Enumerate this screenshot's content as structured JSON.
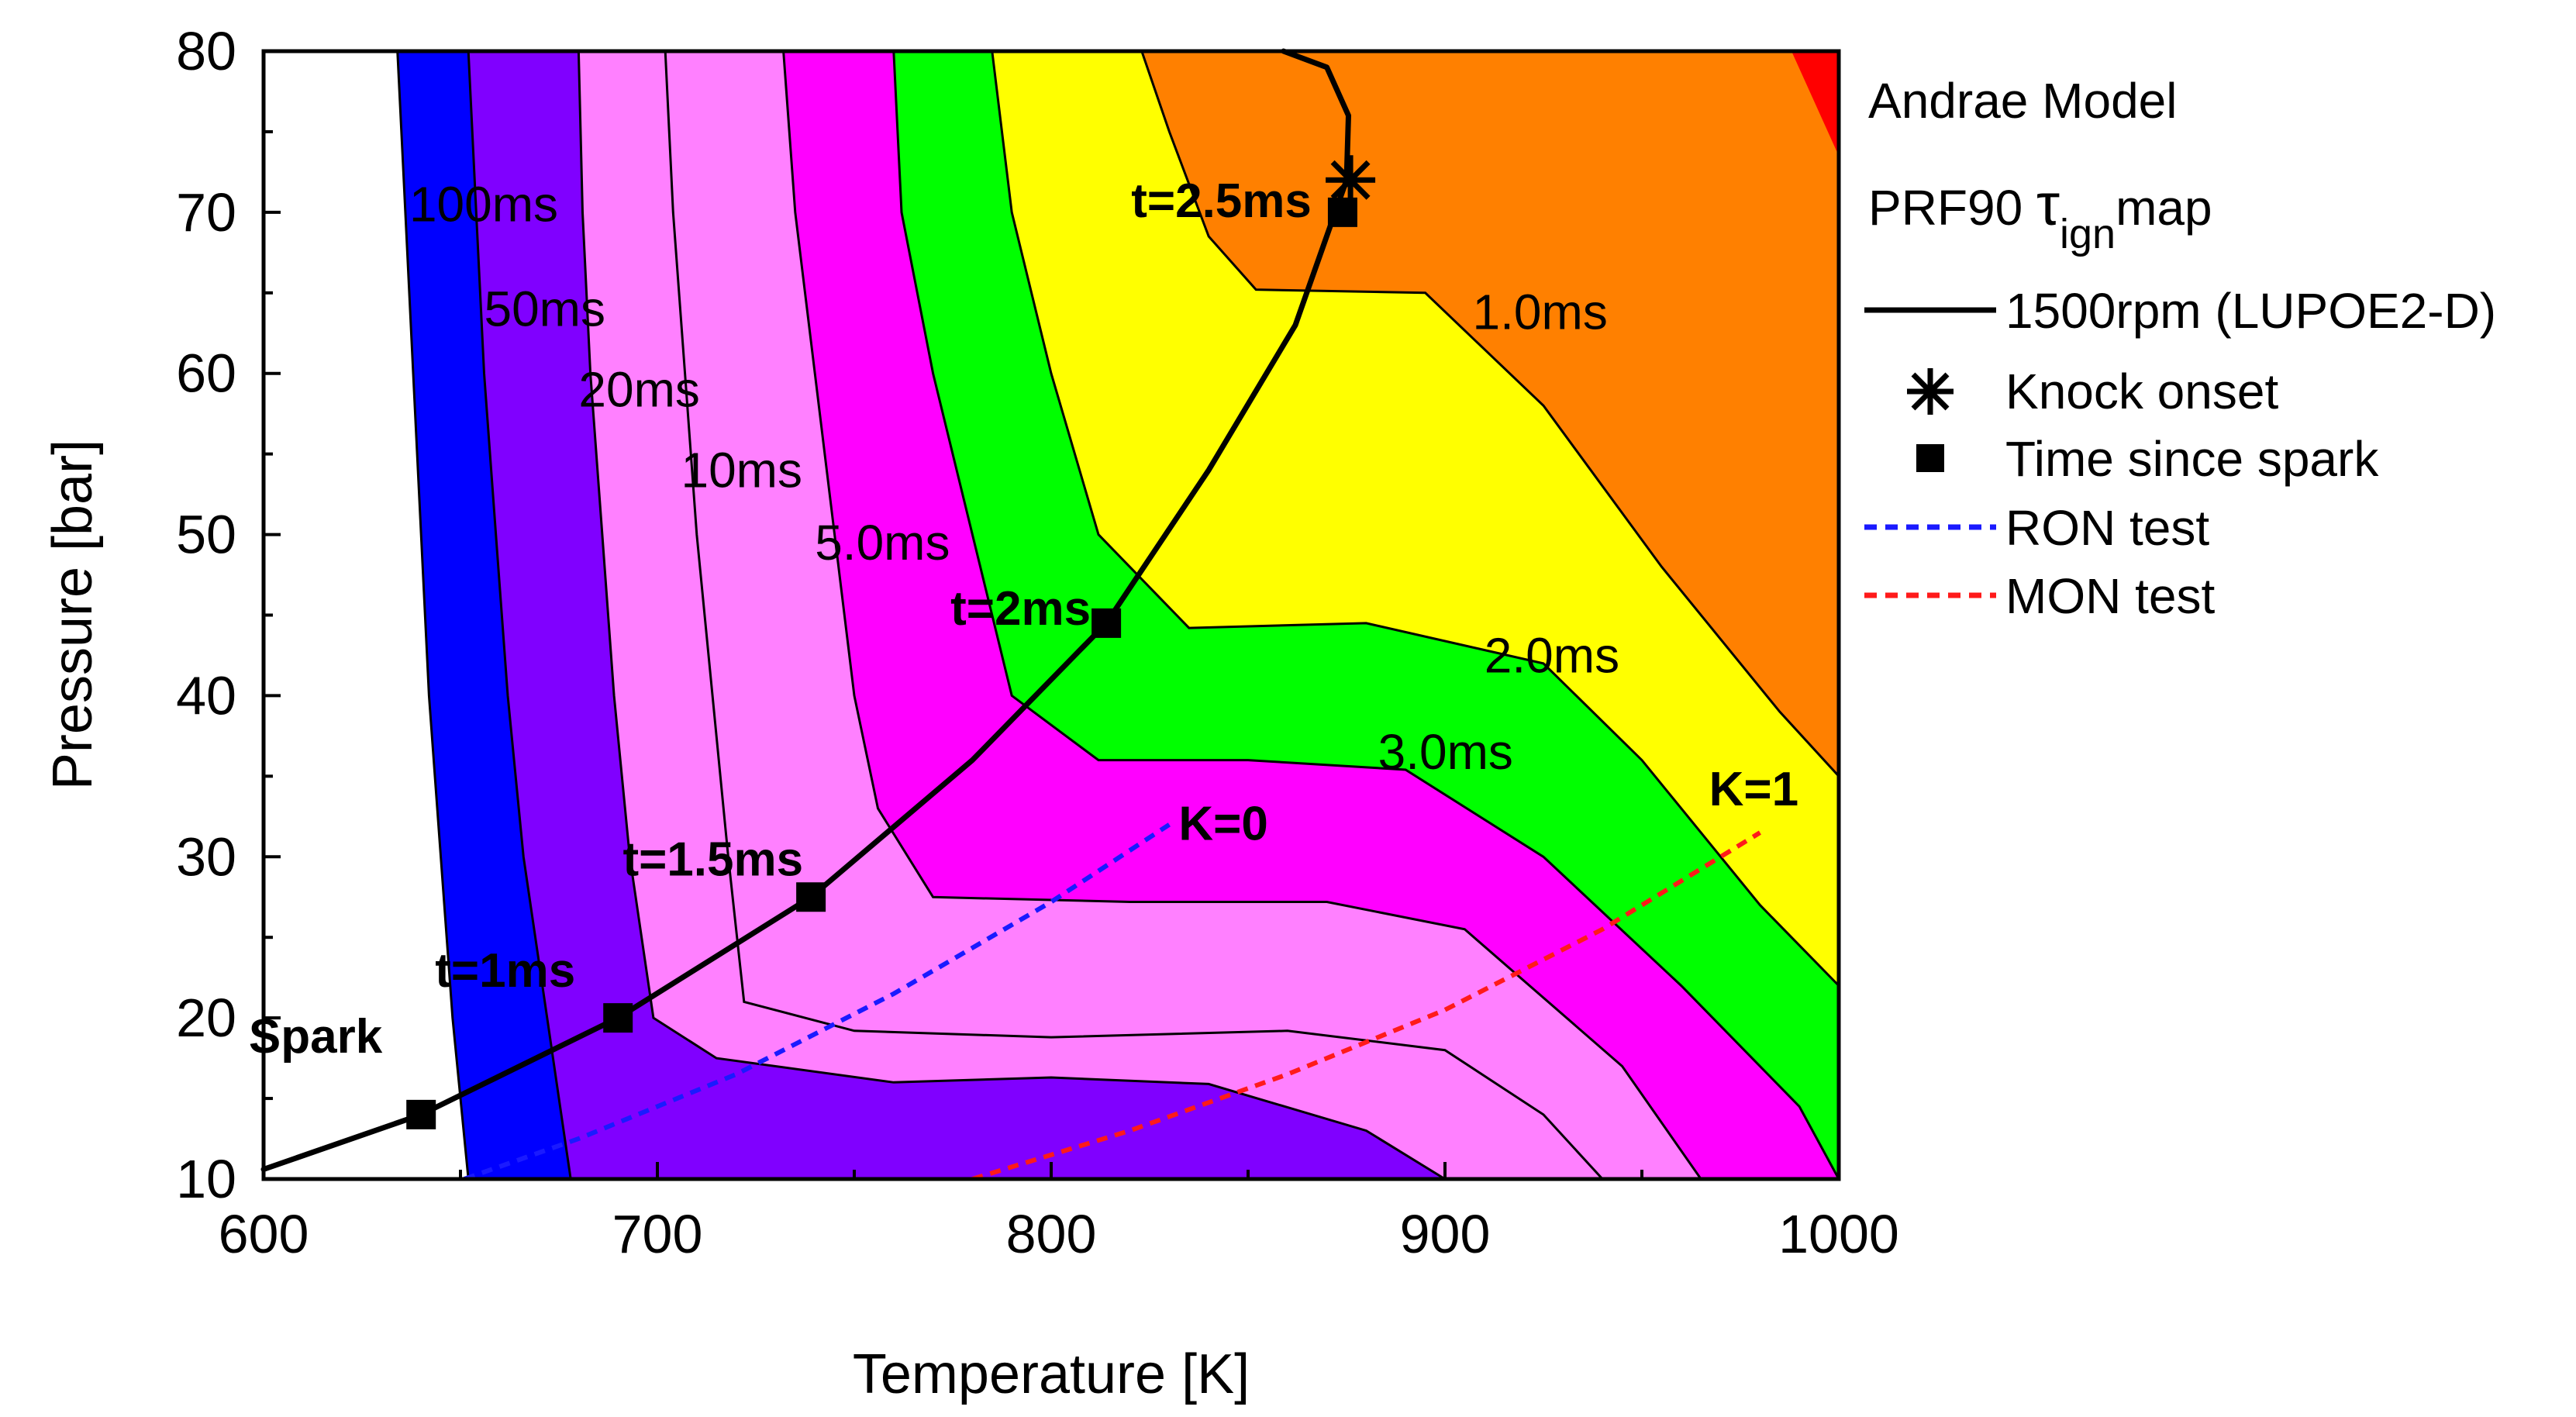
{
  "chart_data": {
    "type": "contour",
    "title": "",
    "xlabel": "Temperature [K]",
    "ylabel": "Pressure [bar]",
    "xlim": [
      600,
      1000
    ],
    "ylim": [
      10,
      80
    ],
    "xticks": [
      600,
      700,
      800,
      900,
      1000
    ],
    "yticks": [
      10,
      20,
      30,
      40,
      50,
      60,
      70,
      80
    ],
    "colors": {
      "over_100ms": "#ffffff",
      "50_100ms": "#0000ff",
      "20_50ms": "#8000ff",
      "5_20ms": "#ff80ff",
      "3_5ms": "#ff00ff",
      "2_3ms": "#00ff00",
      "1_2ms": "#ffff00",
      "under_1ms": "#ff8000",
      "corner": "#ff0000",
      "engine_curve": "#000000",
      "ron": "#1a1aff",
      "mon": "#ff1a1a"
    },
    "contours": [
      {
        "label": "100ms",
        "at": [
          637,
          70.5
        ],
        "points": [
          [
            634,
            80
          ],
          [
            636,
            70
          ],
          [
            638,
            60
          ],
          [
            640,
            50
          ],
          [
            642,
            40
          ],
          [
            645,
            30
          ],
          [
            648,
            20
          ],
          [
            652,
            10
          ]
        ]
      },
      {
        "label": "50ms",
        "at": [
          656,
          64
        ],
        "points": [
          [
            652,
            80
          ],
          [
            654,
            70
          ],
          [
            656,
            60
          ],
          [
            659,
            50
          ],
          [
            662,
            40
          ],
          [
            666,
            30
          ],
          [
            672,
            20
          ],
          [
            678,
            10
          ]
        ]
      },
      {
        "label": "20ms",
        "at": [
          680,
          59
        ],
        "points": [
          [
            680,
            80
          ],
          [
            681,
            70
          ],
          [
            683,
            60
          ],
          [
            686,
            50
          ],
          [
            689,
            40
          ],
          [
            693,
            30
          ],
          [
            699,
            20
          ],
          [
            715,
            17.5
          ],
          [
            760,
            16
          ],
          [
            800,
            16.3
          ],
          [
            840,
            15.9
          ],
          [
            880,
            13
          ],
          [
            900,
            10
          ]
        ]
      },
      {
        "label": "10ms",
        "at": [
          706,
          54
        ],
        "points": [
          [
            702,
            80
          ],
          [
            704,
            70
          ],
          [
            707,
            60
          ],
          [
            710,
            50
          ],
          [
            714,
            40
          ],
          [
            718,
            30
          ],
          [
            722,
            21
          ],
          [
            750,
            19.2
          ],
          [
            800,
            18.8
          ],
          [
            860,
            19.2
          ],
          [
            900,
            18
          ],
          [
            925,
            14
          ],
          [
            940,
            10
          ]
        ]
      },
      {
        "label": "5.0ms",
        "at": [
          740,
          49.5
        ],
        "points": [
          [
            732,
            80
          ],
          [
            735,
            70
          ],
          [
            740,
            60
          ],
          [
            745,
            50
          ],
          [
            750,
            40
          ],
          [
            756,
            33
          ],
          [
            770,
            27.5
          ],
          [
            820,
            27.2
          ],
          [
            870,
            27.2
          ],
          [
            905,
            25.5
          ],
          [
            945,
            17
          ],
          [
            965,
            10
          ]
        ]
      },
      {
        "label": "3.0ms",
        "at": [
          883,
          36.5
        ],
        "points": [
          [
            760,
            80
          ],
          [
            762,
            70
          ],
          [
            770,
            60
          ],
          [
            780,
            50
          ],
          [
            790,
            40
          ],
          [
            812,
            36
          ],
          [
            850,
            36
          ],
          [
            890,
            35.4
          ],
          [
            925,
            30
          ],
          [
            960,
            22
          ],
          [
            990,
            14.5
          ],
          [
            1000,
            10
          ]
        ]
      },
      {
        "label": "2.0ms",
        "at": [
          910,
          42.5
        ],
        "points": [
          [
            785,
            80
          ],
          [
            790,
            70
          ],
          [
            800,
            60
          ],
          [
            812,
            50
          ],
          [
            835,
            44.2
          ],
          [
            880,
            44.5
          ],
          [
            925,
            42
          ],
          [
            950,
            36
          ],
          [
            980,
            27
          ],
          [
            1000,
            22
          ]
        ]
      },
      {
        "label": "1.0ms",
        "at": [
          907,
          63.8
        ],
        "points": [
          [
            823,
            80
          ],
          [
            830,
            75
          ],
          [
            840,
            68.5
          ],
          [
            852,
            65.2
          ],
          [
            895,
            65
          ],
          [
            925,
            58
          ],
          [
            955,
            48
          ],
          [
            985,
            39
          ],
          [
            1000,
            35
          ]
        ]
      }
    ],
    "engine_curve": {
      "name": "1500rpm (LUPOE2-D)",
      "points": [
        [
          600,
          10.6
        ],
        [
          640,
          14
        ],
        [
          690,
          20
        ],
        [
          739,
          27.5
        ],
        [
          780,
          36
        ],
        [
          814,
          44.5
        ],
        [
          840,
          54
        ],
        [
          862,
          63
        ],
        [
          875,
          72
        ],
        [
          875.5,
          76
        ],
        [
          870,
          79
        ],
        [
          859,
          80
        ]
      ]
    },
    "time_markers": [
      {
        "label": "Spark",
        "t": 640,
        "p": 14
      },
      {
        "label": "t=1ms",
        "t": 690,
        "p": 20
      },
      {
        "label": "t=1.5ms",
        "t": 739,
        "p": 27.5
      },
      {
        "label": "t=2ms",
        "t": 814,
        "p": 44.5
      },
      {
        "label": "t=2.5ms",
        "t": 874,
        "p": 70
      }
    ],
    "knock_onset": {
      "t": 876,
      "p": 72
    },
    "ron_test": {
      "name": "RON test",
      "end_label": "K=0",
      "points": [
        [
          651,
          10
        ],
        [
          680,
          12.5
        ],
        [
          720,
          16.5
        ],
        [
          760,
          21.5
        ],
        [
          800,
          27.2
        ],
        [
          830,
          32
        ]
      ]
    },
    "mon_test": {
      "name": "MON test",
      "end_label": "K=1",
      "points": [
        [
          780,
          10
        ],
        [
          820,
          13
        ],
        [
          860,
          16.5
        ],
        [
          900,
          20.5
        ],
        [
          940,
          25.5
        ],
        [
          980,
          31.5
        ]
      ]
    },
    "legend": {
      "model": "Andrae Model",
      "map_prefix": "PRF90 ",
      "map_tau": "τ",
      "map_sub": "ign",
      "map_suffix": "map",
      "curve": "1500rpm (LUPOE2-D)",
      "knock": "Knock onset",
      "time": "Time since spark",
      "ron": "RON test",
      "mon": "MON test"
    }
  }
}
